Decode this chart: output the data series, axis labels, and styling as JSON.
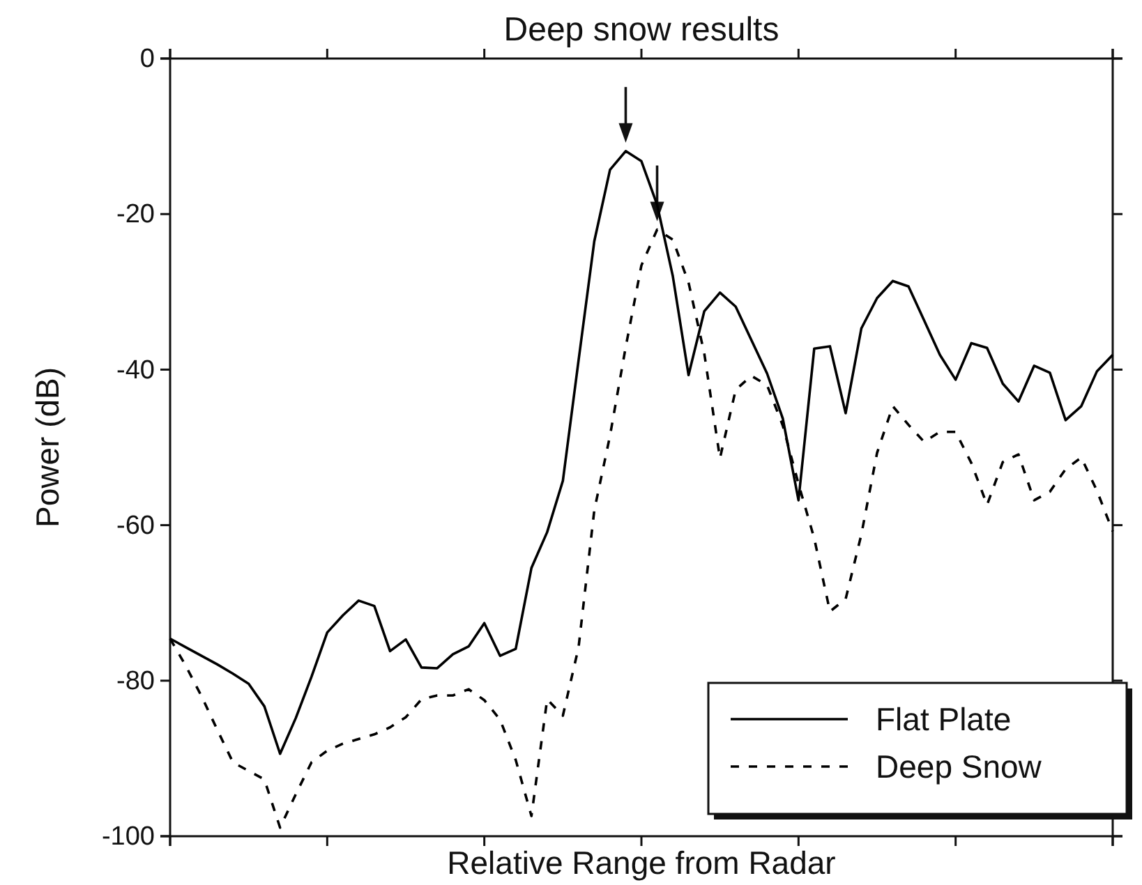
{
  "chart_data": {
    "type": "line",
    "title": "Deep snow results",
    "xlabel": "Relative Range from Radar",
    "ylabel": "Power (dB)",
    "categories": [
      null,
      null,
      null,
      null,
      null,
      null,
      null,
      null,
      null,
      null,
      null,
      null,
      null,
      null,
      null,
      null,
      null,
      null,
      null,
      null,
      null,
      null,
      null,
      null,
      null,
      null,
      null,
      null,
      null,
      null,
      null,
      null,
      null,
      null,
      null,
      null,
      null,
      null,
      null,
      null,
      null,
      null,
      null,
      null,
      null,
      null,
      null,
      null,
      null,
      null,
      null,
      null,
      null,
      null,
      null,
      null,
      null,
      null,
      null,
      null,
      null
    ],
    "ylim": [
      -100,
      0
    ],
    "yticks": [
      -100,
      -80,
      -60,
      -40,
      -20,
      0
    ],
    "grid": false,
    "legend": "bottom right",
    "marker": "none",
    "series": [
      {
        "name": "Flat Plate",
        "color": "#000000",
        "line_style": "solid",
        "values": [
          -74.6,
          -75.7,
          -76.8,
          -77.9,
          -79.1,
          -80.4,
          -83.3,
          -89.4,
          -84.8,
          -79.5,
          -73.8,
          -71.6,
          -69.7,
          -70.4,
          -76.2,
          -74.7,
          -78.3,
          -78.4,
          -76.6,
          -75.6,
          -72.6,
          -76.8,
          -75.9,
          -65.5,
          -60.9,
          -54.3,
          -38.8,
          -23.5,
          -14.3,
          -11.9,
          -13.2,
          -18.8,
          -28,
          -40.7,
          -32.5,
          -30.1,
          -31.9,
          -36.2,
          -40.5,
          -46.3,
          -56.8,
          -37.3,
          -37,
          -45.6,
          -34.7,
          -30.8,
          -28.6,
          -29.3,
          -33.7,
          -38.1,
          -41.3,
          -36.6,
          -37.2,
          -41.8,
          -44.1,
          -39.5,
          -40.4,
          -46.5,
          -44.7,
          -40.2,
          -38.1
        ]
      },
      {
        "name": "Deep Snow",
        "color": "#000000",
        "line_style": "dashed",
        "values": [
          -74.6,
          -78.1,
          -82,
          -86.3,
          -90.5,
          -91.6,
          -92.7,
          -98.9,
          -94.6,
          -90.5,
          -89,
          -88.1,
          -87.5,
          -86.9,
          -86,
          -84.7,
          -82.4,
          -81.9,
          -81.9,
          -81.1,
          -82.5,
          -85,
          -90.2,
          -97.4,
          -82.4,
          -84.5,
          -75.7,
          -58.1,
          -48.5,
          -37.1,
          -26.6,
          -22,
          -23.3,
          -28.8,
          -37.9,
          -51.4,
          -42.6,
          -40.8,
          -42,
          -47.2,
          -54.7,
          -61.7,
          -71.1,
          -69.5,
          -61.2,
          -50.7,
          -44.7,
          -47.1,
          -49.3,
          -48,
          -48,
          -52,
          -57.4,
          -51.9,
          -50.9,
          -56.8,
          -55.7,
          -52.8,
          -51.3,
          -55.6,
          -60.8
        ]
      }
    ]
  }
}
